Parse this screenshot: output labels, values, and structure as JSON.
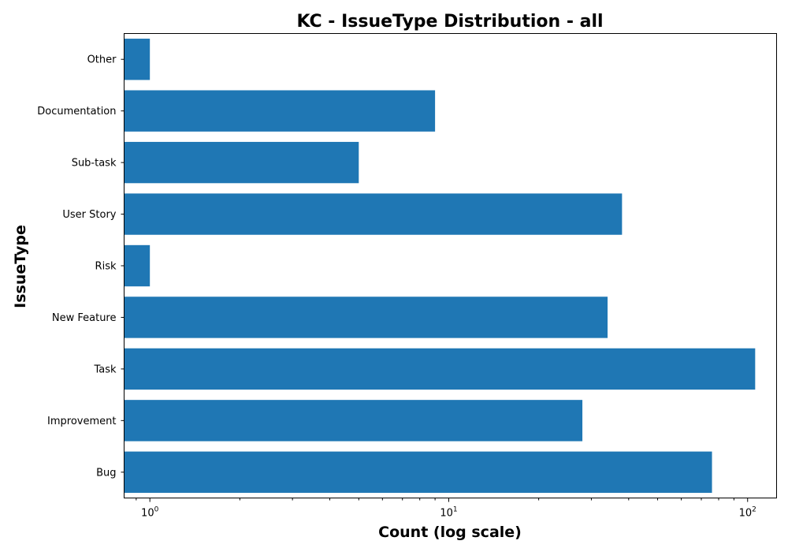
{
  "chart_data": {
    "type": "bar",
    "orientation": "horizontal",
    "title": "KC - IssueType Distribution - all",
    "xlabel": "Count (log scale)",
    "ylabel": "IssueType",
    "x_scale": "log",
    "xlim": [
      0.82,
      125
    ],
    "x_ticks": [
      {
        "value": 1,
        "base": "10",
        "exp": "0"
      },
      {
        "value": 10,
        "base": "10",
        "exp": "1"
      },
      {
        "value": 100,
        "base": "10",
        "exp": "2"
      }
    ],
    "categories": [
      "Bug",
      "Improvement",
      "Task",
      "New Feature",
      "Risk",
      "User Story",
      "Sub-task",
      "Documentation",
      "Other"
    ],
    "values": [
      76,
      28,
      106,
      34,
      1,
      38,
      5,
      9,
      1
    ],
    "color": "#1f77b4",
    "grid": false
  }
}
